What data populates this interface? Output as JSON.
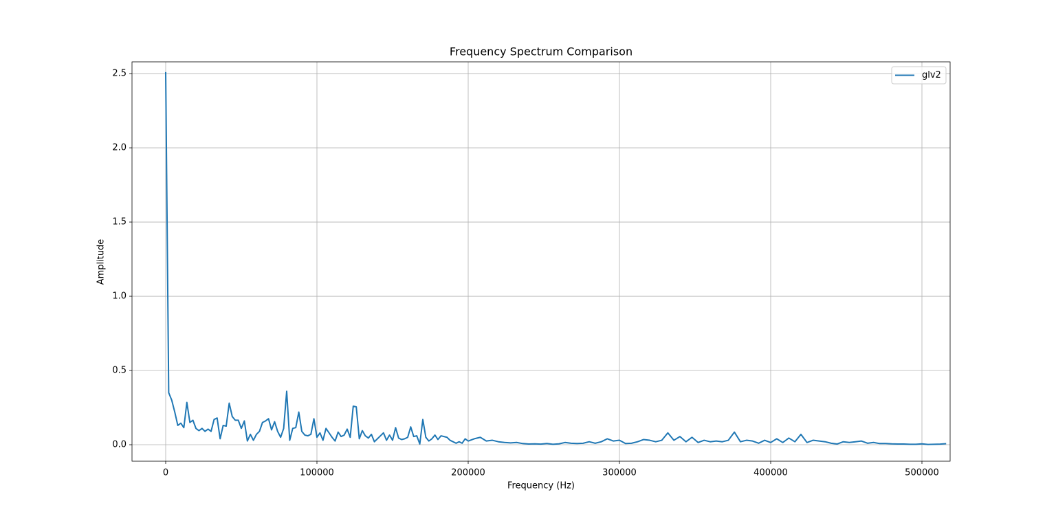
{
  "chart_data": {
    "type": "line",
    "title": "Frequency Spectrum Comparison",
    "xlabel": "Frequency (Hz)",
    "ylabel": "Amplitude",
    "x": [
      0,
      2000,
      4000,
      6000,
      8000,
      10000,
      12000,
      14000,
      16000,
      18000,
      20000,
      22000,
      24000,
      26000,
      28000,
      30000,
      32000,
      34000,
      36000,
      38000,
      40000,
      42000,
      44000,
      46000,
      48000,
      50000,
      52000,
      54000,
      56000,
      58000,
      60000,
      62000,
      64000,
      66000,
      68000,
      70000,
      72000,
      74000,
      76000,
      78000,
      80000,
      82000,
      84000,
      86000,
      88000,
      90000,
      92000,
      94000,
      96000,
      98000,
      100000,
      102000,
      104000,
      106000,
      108000,
      110000,
      112000,
      114000,
      116000,
      118000,
      120000,
      122000,
      124000,
      126000,
      128000,
      130000,
      132000,
      134000,
      136000,
      138000,
      140000,
      142000,
      144000,
      146000,
      148000,
      150000,
      152000,
      154000,
      156000,
      158000,
      160000,
      162000,
      164000,
      166000,
      168000,
      170000,
      172000,
      174000,
      176000,
      178000,
      180000,
      182000,
      184000,
      186000,
      188000,
      190000,
      192000,
      194000,
      196000,
      198000,
      200000,
      204000,
      208000,
      212000,
      216000,
      220000,
      224000,
      228000,
      232000,
      236000,
      240000,
      244000,
      248000,
      252000,
      256000,
      260000,
      264000,
      268000,
      272000,
      276000,
      280000,
      284000,
      288000,
      292000,
      296000,
      300000,
      304000,
      308000,
      312000,
      316000,
      320000,
      324000,
      328000,
      332000,
      336000,
      340000,
      344000,
      348000,
      352000,
      356000,
      360000,
      364000,
      368000,
      372000,
      376000,
      380000,
      384000,
      388000,
      392000,
      396000,
      400000,
      404000,
      408000,
      412000,
      416000,
      420000,
      424000,
      428000,
      432000,
      436000,
      440000,
      444000,
      448000,
      452000,
      456000,
      460000,
      464000,
      468000,
      472000,
      476000,
      480000,
      484000,
      488000,
      492000,
      496000,
      500000,
      504000,
      508000,
      512000,
      516000
    ],
    "series": [
      {
        "name": "glv2",
        "color": "#1f77b4",
        "values": [
          2.51,
          0.35,
          0.3,
          0.22,
          0.13,
          0.145,
          0.115,
          0.285,
          0.15,
          0.165,
          0.11,
          0.095,
          0.11,
          0.09,
          0.105,
          0.09,
          0.17,
          0.18,
          0.04,
          0.13,
          0.125,
          0.28,
          0.19,
          0.165,
          0.165,
          0.11,
          0.16,
          0.025,
          0.07,
          0.03,
          0.07,
          0.09,
          0.15,
          0.16,
          0.175,
          0.1,
          0.155,
          0.09,
          0.05,
          0.11,
          0.36,
          0.03,
          0.11,
          0.115,
          0.22,
          0.09,
          0.065,
          0.06,
          0.07,
          0.175,
          0.05,
          0.08,
          0.03,
          0.11,
          0.08,
          0.05,
          0.025,
          0.085,
          0.055,
          0.065,
          0.105,
          0.05,
          0.26,
          0.255,
          0.04,
          0.095,
          0.06,
          0.045,
          0.07,
          0.02,
          0.04,
          0.06,
          0.08,
          0.03,
          0.065,
          0.03,
          0.115,
          0.045,
          0.035,
          0.04,
          0.05,
          0.12,
          0.055,
          0.06,
          0.005,
          0.17,
          0.05,
          0.025,
          0.04,
          0.065,
          0.035,
          0.06,
          0.055,
          0.05,
          0.03,
          0.02,
          0.01,
          0.02,
          0.01,
          0.04,
          0.025,
          0.04,
          0.05,
          0.025,
          0.03,
          0.02,
          0.015,
          0.012,
          0.015,
          0.008,
          0.005,
          0.006,
          0.004,
          0.008,
          0.003,
          0.006,
          0.015,
          0.01,
          0.008,
          0.01,
          0.02,
          0.01,
          0.02,
          0.04,
          0.025,
          0.03,
          0.008,
          0.01,
          0.02,
          0.035,
          0.03,
          0.02,
          0.03,
          0.08,
          0.03,
          0.055,
          0.02,
          0.05,
          0.015,
          0.03,
          0.02,
          0.025,
          0.02,
          0.03,
          0.085,
          0.02,
          0.03,
          0.025,
          0.01,
          0.03,
          0.015,
          0.04,
          0.015,
          0.045,
          0.02,
          0.07,
          0.015,
          0.03,
          0.025,
          0.02,
          0.01,
          0.005,
          0.02,
          0.015,
          0.02,
          0.025,
          0.01,
          0.015,
          0.008,
          0.008,
          0.006,
          0.005,
          0.005,
          0.003,
          0.003,
          0.006,
          0.002,
          0.003,
          0.004,
          0.007
        ]
      }
    ],
    "xlim": [
      -22273,
      518636
    ],
    "ylim": [
      -0.111,
      2.579
    ],
    "xticks": [
      0,
      100000,
      200000,
      300000,
      400000,
      500000
    ],
    "yticks": [
      {
        "value": 0,
        "label": "0.0"
      },
      0.5,
      {
        "value": 1,
        "label": "1.0"
      },
      1.5,
      {
        "value": 2,
        "label": "2.0"
      },
      2.5
    ],
    "grid": true,
    "legend": "upper right"
  }
}
